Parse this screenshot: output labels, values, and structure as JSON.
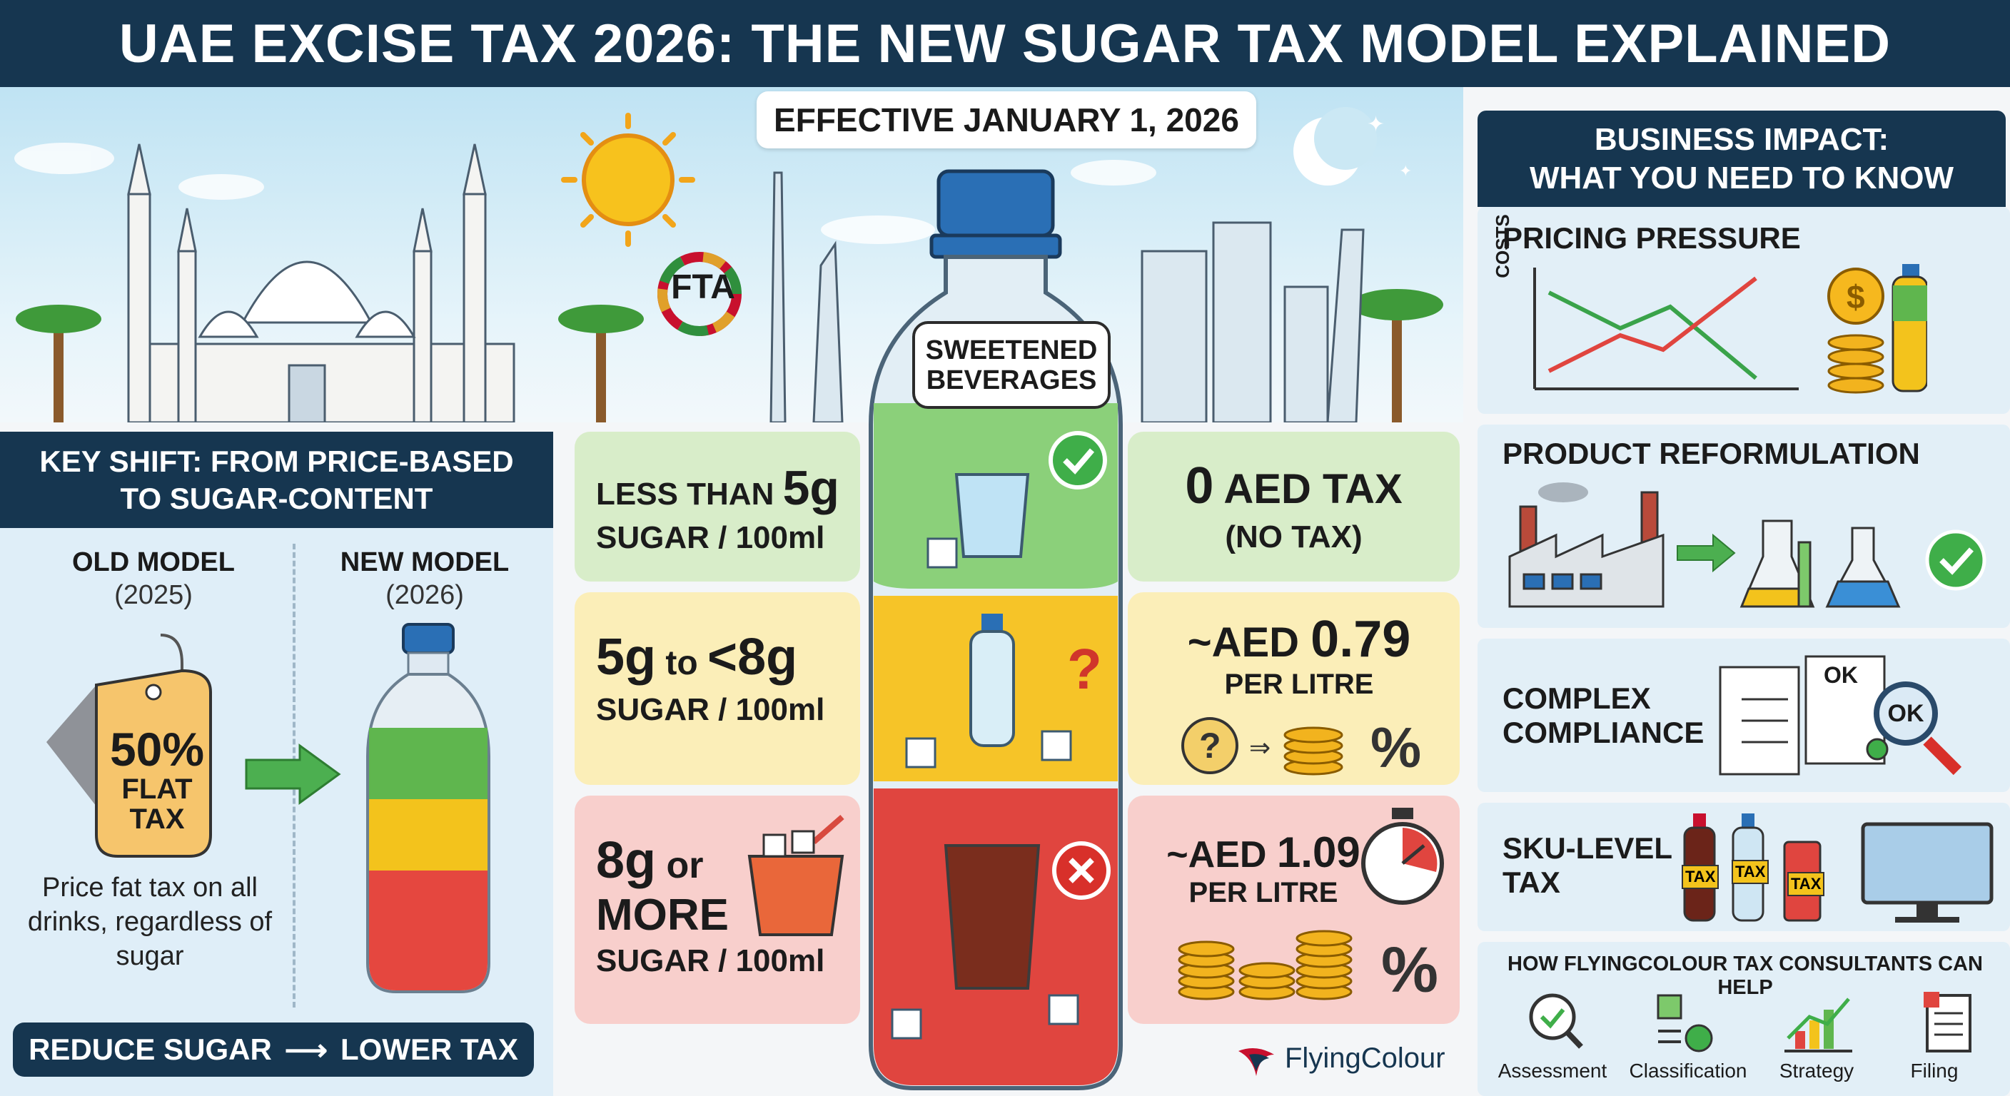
{
  "title": "UAE EXCISE TAX 2026: THE NEW SUGAR TAX MODEL EXPLAINED",
  "effective": "EFFECTIVE JANUARY 1, 2026",
  "fta_label": "FTA",
  "bottle_label_line1": "SWEETENED",
  "bottle_label_line2": "BEVERAGES",
  "key_shift": {
    "line1": "KEY SHIFT: FROM PRICE-BASED",
    "line2": "TO SUGAR-CONTENT",
    "old_model": "OLD MODEL",
    "old_year": "(2025)",
    "new_model": "NEW MODEL",
    "new_year": "(2026)",
    "tag_pct": "50%",
    "tag_line1": "FLAT",
    "tag_line2": "TAX",
    "old_desc": "Price fat tax on all drinks, regardless of sugar",
    "reduce_left": "REDUCE SUGAR",
    "reduce_right": "LOWER TAX"
  },
  "tiers": [
    {
      "amount_a": "LESS THAN ",
      "amount_b": "5g",
      "unit": "SUGAR / 100ml",
      "tax_a": "0",
      "tax_b": " AED TAX",
      "tax_sub": "(NO TAX)"
    },
    {
      "amount_a": "5g",
      "amount_b": " to ",
      "amount_c": "<8g",
      "unit": "SUGAR / 100ml",
      "tax_a": "~AED ",
      "tax_b": "0.79",
      "tax_sub": "PER LITRE"
    },
    {
      "amount_a": "8g",
      "amount_b": " or",
      "amount_c": "MORE",
      "unit": "SUGAR / 100ml",
      "tax_a": "~AED ",
      "tax_b": "1.09",
      "tax_sub": "PER LITRE"
    }
  ],
  "business": {
    "head1": "BUSINESS IMPACT:",
    "head2": "WHAT YOU NEED TO KNOW",
    "pricing": "PRICING PRESSURE",
    "costs_axis": "COSTS",
    "reform": "PRODUCT REFORMULATION",
    "compliance1": "COMPLEX",
    "compliance2": "COMPLIANCE",
    "ok1": "OK",
    "ok2": "OK",
    "sku1": "SKU-LEVEL",
    "sku2": "TAX",
    "sku_tag": "TAX",
    "help_head": "HOW FLYINGCOLOUR TAX CONSULTANTS CAN HELP",
    "help_items": [
      "Assessment",
      "Classification",
      "Strategy",
      "Filing"
    ]
  },
  "brand": "FlyingColour",
  "colors": {
    "navy": "#163650",
    "green_tier": "#d8edc9",
    "yellow_tier": "#fbeeb8",
    "red_tier": "#f8cfcc",
    "bottle_green": "#7dc96b",
    "bottle_yellow": "#f6c428",
    "bottle_red": "#e0453f"
  }
}
